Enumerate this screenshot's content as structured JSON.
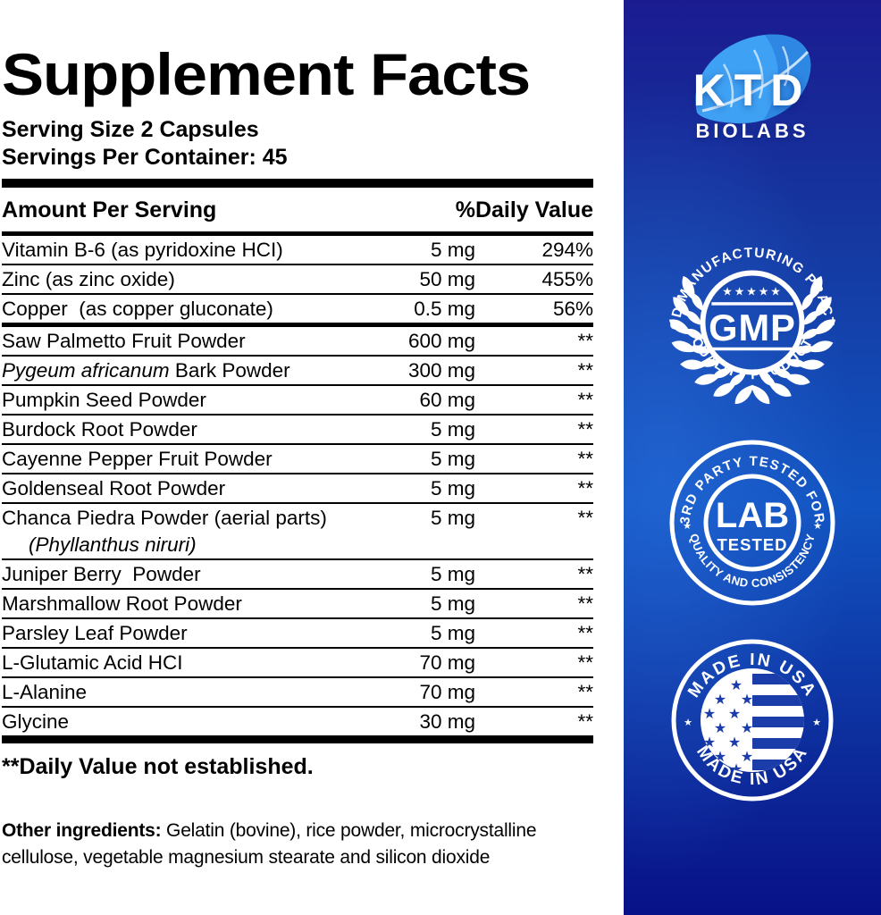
{
  "label": {
    "title": "Supplement Facts",
    "serving_size": "Serving Size 2 Capsules",
    "servings_per_container": "Servings Per Container: 45",
    "column_amount": "Amount Per Serving",
    "column_dv": "%Daily Value",
    "rows": [
      {
        "name": [
          {
            "t": "Vitamin B-6 (as pyridoxine HCI)"
          }
        ],
        "amount": "5 mg",
        "dv": "294%",
        "divider": "thin"
      },
      {
        "name": [
          {
            "t": "Zinc (as zinc oxide)"
          }
        ],
        "amount": "50 mg",
        "dv": "455%",
        "divider": "thin"
      },
      {
        "name": [
          {
            "t": "Copper  (as copper gluconate)"
          }
        ],
        "amount": "0.5 mg",
        "dv": "56%",
        "divider": "med"
      },
      {
        "name": [
          {
            "t": "Saw Palmetto Fruit Powder"
          }
        ],
        "amount": "600 mg",
        "dv": "**",
        "divider": "thin"
      },
      {
        "name": [
          {
            "t": "Pygeum africanum",
            "i": true
          },
          {
            "t": " Bark Powder"
          }
        ],
        "amount": "300 mg",
        "dv": "**",
        "divider": "thin"
      },
      {
        "name": [
          {
            "t": "Pumpkin Seed Powder"
          }
        ],
        "amount": "60 mg",
        "dv": "**",
        "divider": "thin"
      },
      {
        "name": [
          {
            "t": "Burdock Root Powder"
          }
        ],
        "amount": "5 mg",
        "dv": "**",
        "divider": "thin"
      },
      {
        "name": [
          {
            "t": "Cayenne Pepper Fruit Powder"
          }
        ],
        "amount": "5 mg",
        "dv": "**",
        "divider": "thin"
      },
      {
        "name": [
          {
            "t": "Goldenseal Root Powder"
          }
        ],
        "amount": "5 mg",
        "dv": "**",
        "divider": "thin"
      },
      {
        "name": [
          {
            "t": "Chanca Piedra Powder (aerial parts)"
          }
        ],
        "name2": [
          {
            "t": "(Phyllanthus niruri)",
            "i": true
          }
        ],
        "amount": "5 mg",
        "dv": "**",
        "divider": "thin"
      },
      {
        "name": [
          {
            "t": "Juniper Berry  Powder"
          }
        ],
        "amount": "5 mg",
        "dv": "**",
        "divider": "thin"
      },
      {
        "name": [
          {
            "t": "Marshmallow Root Powder"
          }
        ],
        "amount": "5 mg",
        "dv": "**",
        "divider": "thin"
      },
      {
        "name": [
          {
            "t": "Parsley Leaf Powder"
          }
        ],
        "amount": "5 mg",
        "dv": "**",
        "divider": "thin"
      },
      {
        "name": [
          {
            "t": "L-Glutamic Acid HCI"
          }
        ],
        "amount": "70 mg",
        "dv": "**",
        "divider": "thin"
      },
      {
        "name": [
          {
            "t": "L-Alanine"
          }
        ],
        "amount": "70 mg",
        "dv": "**",
        "divider": "thin"
      },
      {
        "name": [
          {
            "t": "Glycine"
          }
        ],
        "amount": "30 mg",
        "dv": "**",
        "divider": "thick"
      }
    ],
    "footnote": "**Daily Value not established.",
    "other_ingredients_label": "Other ingredients:",
    "other_ingredients_text": " Gelatin (bovine), rice powder, microcrystalline cellulose, vegetable magnesium stearate and silicon dioxide"
  },
  "sidebar": {
    "brand": {
      "name": "KTD",
      "subname": "BIOLABS"
    },
    "gmp_badge": {
      "arc_top": "GOOD MANUFACTURING PRACTICE",
      "stars": "★★★★★",
      "center": "GMP",
      "arc_bottom": "QUALITY PRODUCT"
    },
    "lab_badge": {
      "arc_top": "3RD PARTY TESTED FOR",
      "center_line1": "LAB",
      "center_line2": "TESTED",
      "arc_bottom": "QUALITY AND CONSISTENCY",
      "side_star": "★"
    },
    "usa_badge": {
      "arc_top": "MADE IN USA",
      "arc_bottom": "MADE IN USA",
      "side_star": "★"
    },
    "colors": {
      "panel_top": "#1a1b90",
      "panel_mid": "#1154c1",
      "panel_bottom": "#081188",
      "leaf_light": "#3fa1f3",
      "leaf_dark": "#2e87e2",
      "badge_white": "#ffffff",
      "usa_flag_blue": "#1b3daa"
    }
  }
}
